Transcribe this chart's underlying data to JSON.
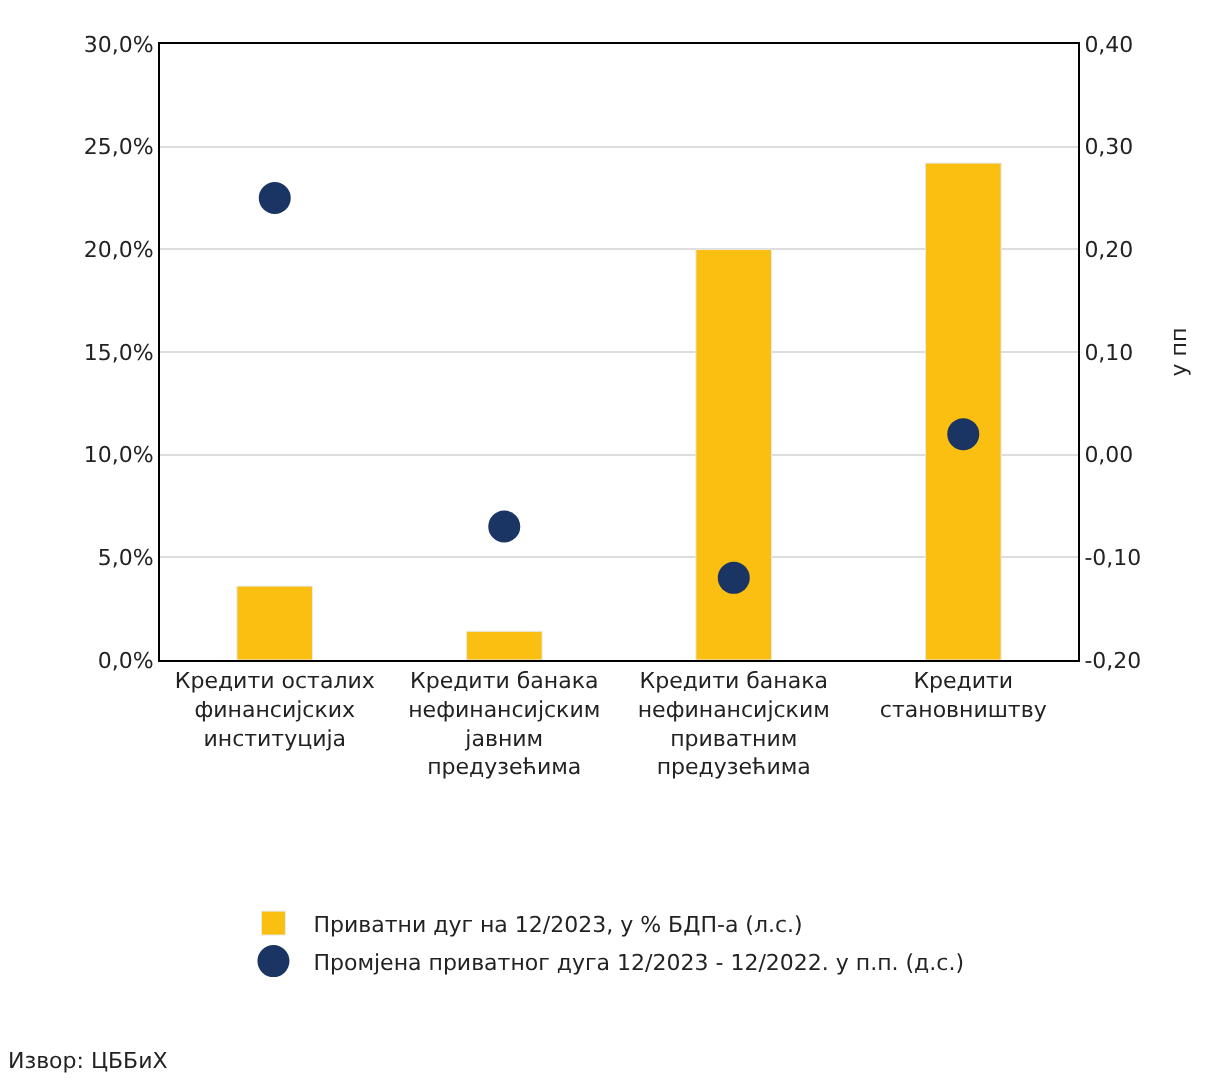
{
  "chart_data": {
    "type": "bar",
    "categories": [
      "Кредити осталих\nфинансијских\nинституција",
      "Кредити банака\nнефинансијским\nјавним\nпредузећима",
      "Кредити банака\nнефинансијским\nприватним\nпредузећима",
      "Кредити\nстановништву"
    ],
    "series": [
      {
        "name": "Приватни дуг на 12/2023, у % БДП-а (л.с.)",
        "color": "#fbbf12",
        "values": [
          3.6,
          1.4,
          20.0,
          24.2
        ]
      },
      {
        "name": "Промјена приватног дуга 12/2023 - 12/2022. у п.п. (д.с.)",
        "type": "scatter",
        "axis": "y2",
        "color": "#1a3563",
        "marker": "circle",
        "values": [
          0.25,
          -0.07,
          -0.12,
          0.02
        ]
      }
    ],
    "ylim": [
      0,
      30
    ],
    "yticks": [
      {
        "value": 0,
        "label": "0,0%"
      },
      {
        "value": 5,
        "label": "5,0%"
      },
      {
        "value": 10,
        "label": "10,0%"
      },
      {
        "value": 15,
        "label": "15,0%"
      },
      {
        "value": 20,
        "label": "20,0%"
      },
      {
        "value": 25,
        "label": "25,0%"
      },
      {
        "value": 30,
        "label": "30,0%"
      }
    ],
    "y2lim": [
      -0.2,
      0.4
    ],
    "y2ticks": [
      {
        "value": -0.2,
        "label": "-0,20"
      },
      {
        "value": -0.1,
        "label": "-0,10"
      },
      {
        "value": 0,
        "label": "0,00"
      },
      {
        "value": 0.1,
        "label": "0,10"
      },
      {
        "value": 0.2,
        "label": "0,20"
      },
      {
        "value": 0.3,
        "label": "0,30"
      },
      {
        "value": 0.4,
        "label": "0,40"
      }
    ],
    "y2label": "у пп",
    "grid": "y",
    "legend": "bottom",
    "annotations": [
      "Извор: ЦББиХ"
    ]
  }
}
